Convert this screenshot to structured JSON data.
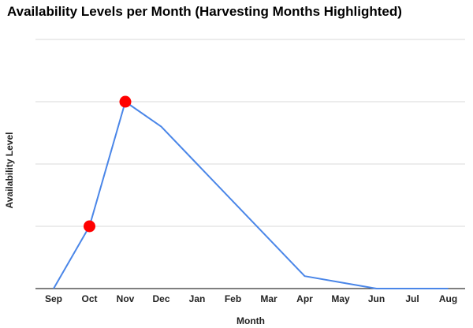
{
  "chart_data": {
    "type": "line",
    "title": "Availability Levels per Month (Harvesting Months Highlighted)",
    "xlabel": "Month",
    "ylabel": "Availability Level",
    "categories": [
      "Sep",
      "Oct",
      "Nov",
      "Dec",
      "Jan",
      "Feb",
      "Mar",
      "Apr",
      "May",
      "Jun",
      "Jul",
      "Aug"
    ],
    "series": [
      {
        "values": [
          0,
          1,
          3,
          2.6,
          2.0,
          1.4,
          0.8,
          0.2,
          0.1,
          0,
          0,
          0
        ]
      }
    ],
    "highlighted_categories": [
      "Oct",
      "Nov"
    ],
    "ylim": [
      0,
      4
    ],
    "y_gridlines": [
      0,
      1,
      2,
      3,
      4
    ],
    "y_tick_labels_shown": false,
    "grid": true,
    "legend": "none",
    "colors": {
      "line": "#4a86e8",
      "highlight": "#ff0000",
      "grid": "#d9d9d9",
      "axis": "#333333"
    }
  }
}
